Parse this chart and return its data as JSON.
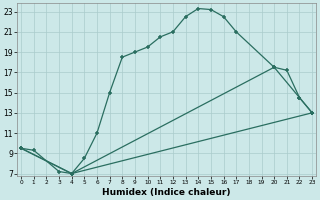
{
  "bg_color": "#cce8e8",
  "grid_color": "#aacccc",
  "line_color": "#2a6e60",
  "xlabel": "Humidex (Indice chaleur)",
  "xlim": [
    -0.3,
    23.3
  ],
  "ylim": [
    6.8,
    23.8
  ],
  "xticks": [
    0,
    1,
    2,
    3,
    4,
    5,
    6,
    7,
    8,
    9,
    10,
    11,
    12,
    13,
    14,
    15,
    16,
    17,
    18,
    19,
    20,
    21,
    22,
    23
  ],
  "yticks": [
    7,
    9,
    11,
    13,
    15,
    17,
    19,
    21,
    23
  ],
  "line1": {
    "x": [
      0,
      1,
      3,
      4,
      5,
      6,
      7,
      8,
      9,
      10,
      11,
      12,
      13,
      14,
      15,
      16,
      17,
      20,
      21,
      22,
      23
    ],
    "y": [
      9.5,
      9.3,
      7.2,
      7.0,
      8.5,
      11.0,
      15.0,
      18.5,
      19.0,
      19.5,
      20.5,
      21.0,
      22.5,
      23.3,
      23.2,
      22.5,
      21.0,
      17.5,
      17.2,
      14.5,
      13.0
    ]
  },
  "line2": {
    "x": [
      0,
      4,
      23
    ],
    "y": [
      9.5,
      7.0,
      13.0
    ]
  },
  "line3": {
    "x": [
      0,
      4,
      20,
      22,
      23
    ],
    "y": [
      9.5,
      7.0,
      17.5,
      14.5,
      13.0
    ]
  }
}
